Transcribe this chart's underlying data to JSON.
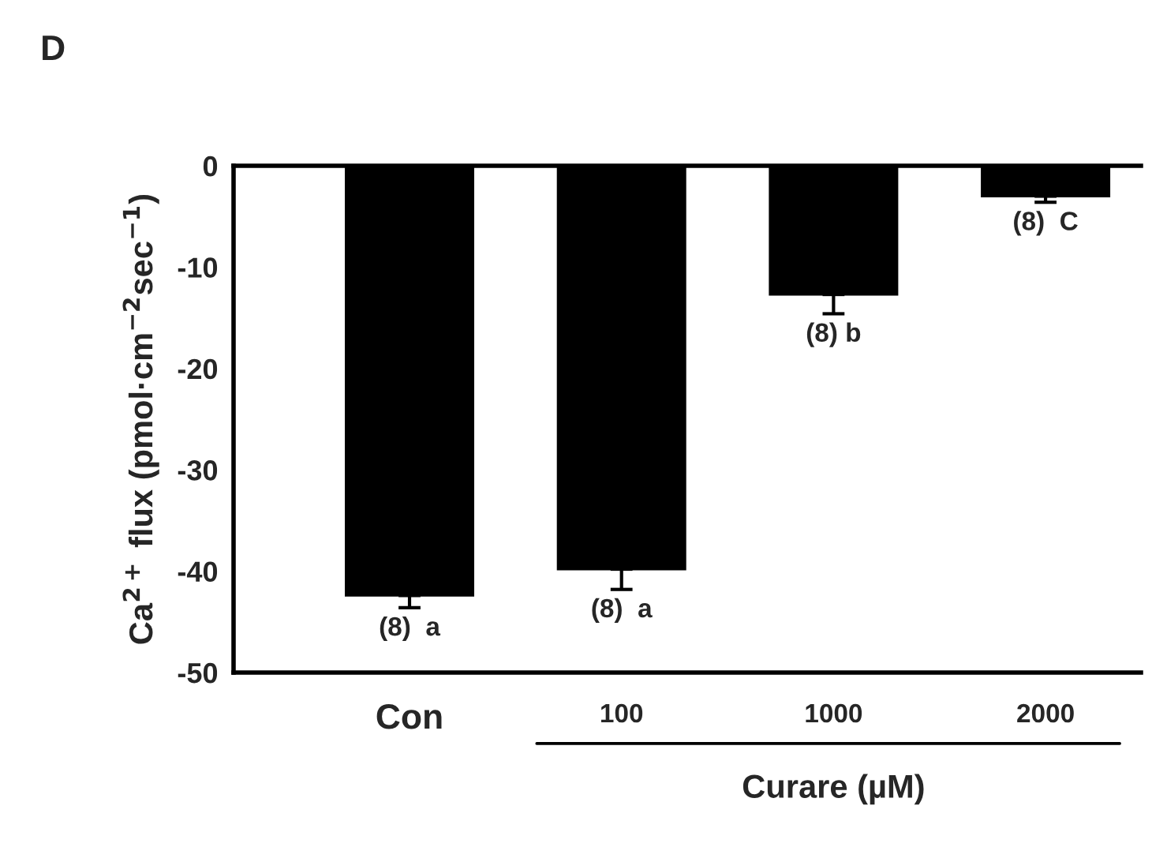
{
  "chart_data": {
    "type": "bar",
    "title": "D",
    "categories": [
      "Con",
      "100",
      "1000",
      "2000"
    ],
    "values": [
      -42.4,
      -39.8,
      -12.7,
      -3.0
    ],
    "errors": [
      [
        -43.6,
        -42.4
      ],
      [
        -41.8,
        -39.8
      ],
      [
        -14.6,
        -12.7
      ],
      [
        -3.6,
        -3.0
      ]
    ],
    "color": "#000000",
    "ylabel": "Ca$^{2+}$ flux (pmol·cm$^{−2}$sec$^{−1}$)",
    "xlabel": "Curare (µM)",
    "ylim": [
      -50,
      0
    ],
    "yticks": [
      0,
      -10,
      -20,
      -30,
      -40,
      -50
    ],
    "annotations": [
      {
        "text": "(8)  a",
        "x": "Con",
        "y": -43.6
      },
      {
        "text": "(8)  a",
        "x": "100",
        "y": -41.8
      },
      {
        "text": "(8) b",
        "x": "1000",
        "y": -14.6
      },
      {
        "text": "(8)  C",
        "x": "2000",
        "y": -3.6
      }
    ],
    "grid": false,
    "legend": false
  }
}
